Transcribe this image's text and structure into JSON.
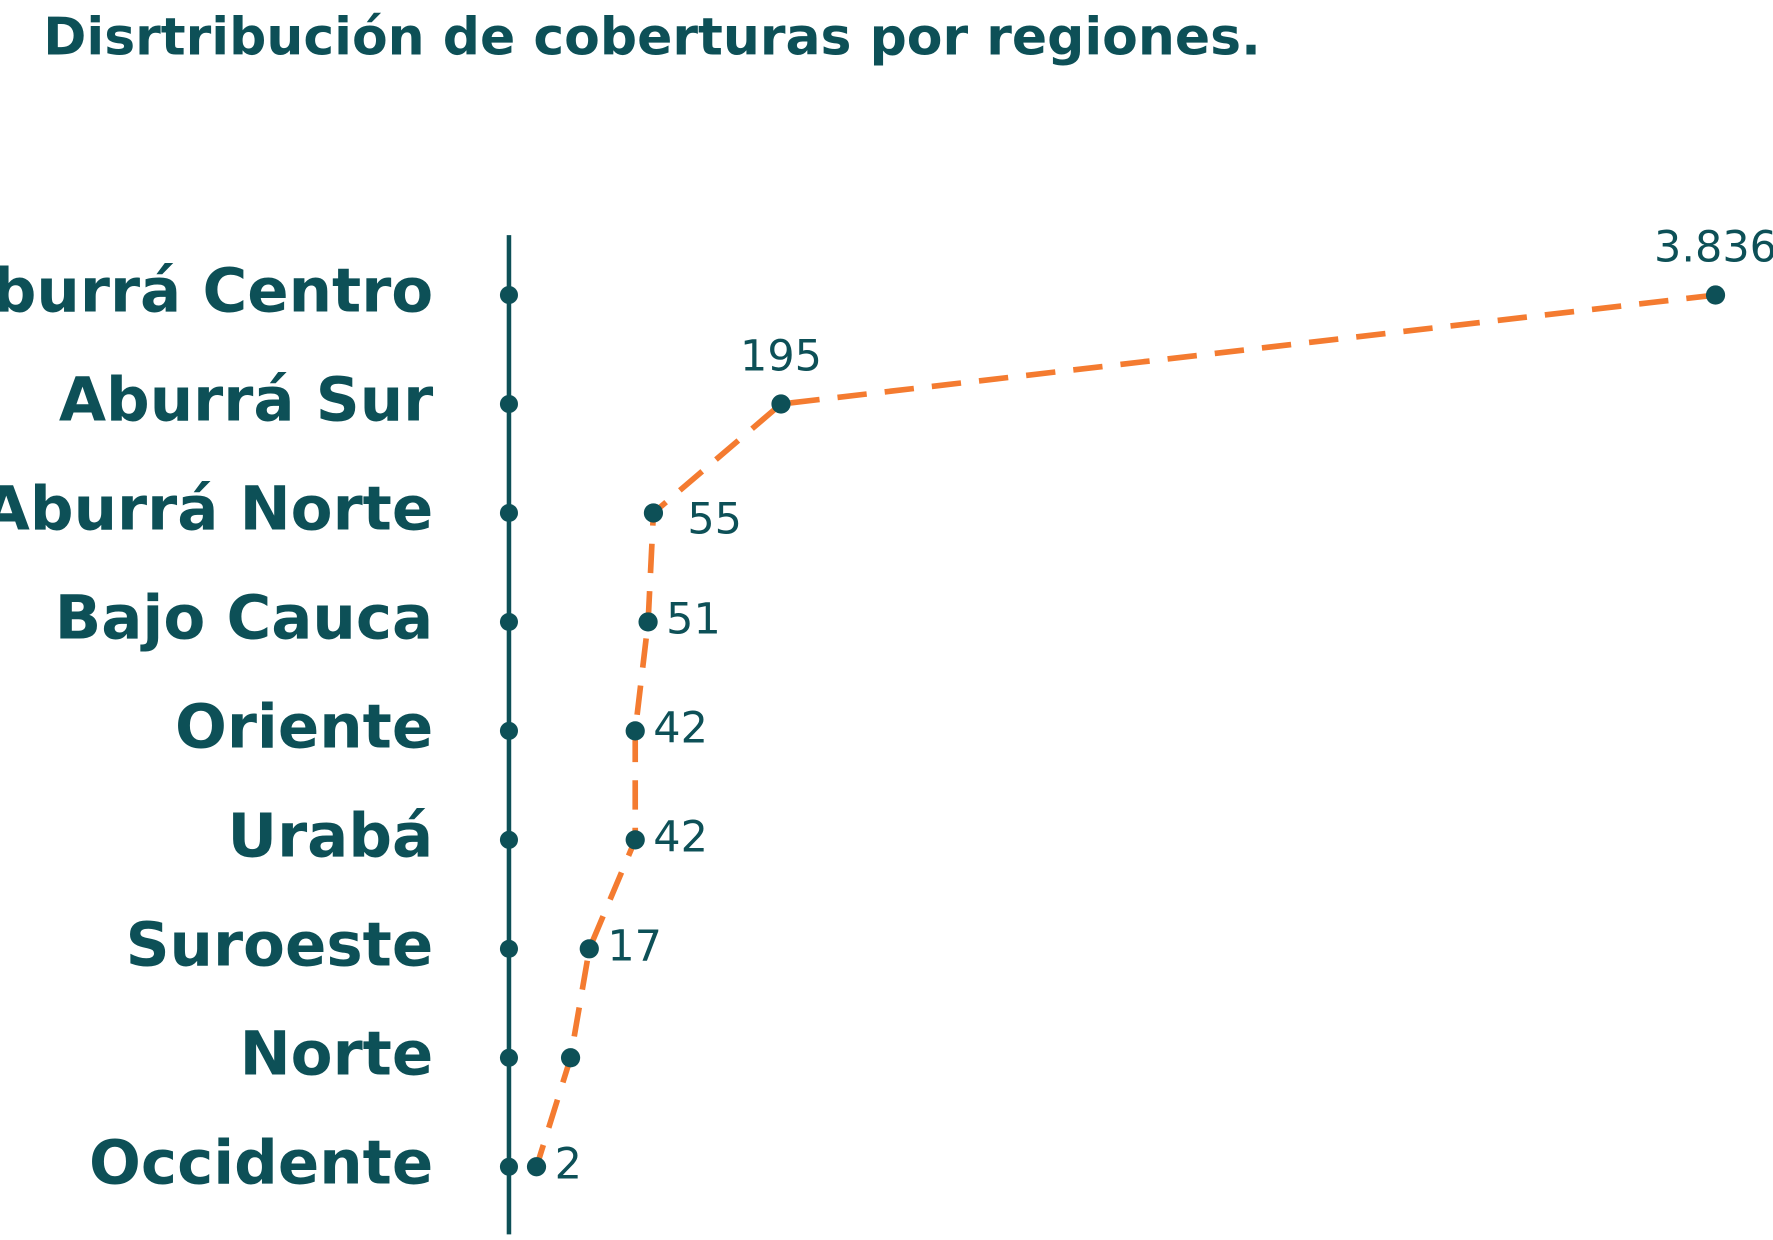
{
  "chart_data": {
    "type": "dot-line",
    "title": "Disrtribución de coberturas por regiones.",
    "categories": [
      "Aburrá Centro",
      "Aburrá Sur",
      "Aburrá Norte",
      "Bajo Cauca",
      "Oriente",
      "Urabá",
      "Suroeste",
      "Norte",
      "Occidente"
    ],
    "values": [
      3836,
      195,
      55,
      51,
      42,
      42,
      17,
      10,
      2
    ],
    "value_labels": [
      "3.836",
      "195",
      "55",
      "51",
      "42",
      "42",
      "17",
      null,
      "2"
    ],
    "xlim": [
      0,
      4000
    ],
    "xscale": "sqrt",
    "line_color": "#f47b30",
    "marker_color": "#0d5057"
  }
}
